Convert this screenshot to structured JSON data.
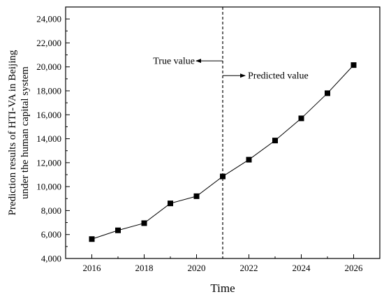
{
  "chart_data": {
    "type": "line",
    "title": "",
    "xlabel": "Time",
    "ylabel_line1": "Prediction results of HTI-VA in Beijing",
    "ylabel_line2": "under the human capital system",
    "x": [
      2016,
      2017,
      2018,
      2019,
      2020,
      2021,
      2022,
      2023,
      2024,
      2025,
      2026
    ],
    "series": [
      {
        "values": [
          5620,
          6350,
          6950,
          8600,
          9200,
          10850,
          12250,
          13850,
          15700,
          17800,
          20150
        ]
      }
    ],
    "xlim": [
      2015,
      2027
    ],
    "ylim": [
      4000,
      25000
    ],
    "x_ticks": [
      2016,
      2018,
      2020,
      2022,
      2024,
      2026
    ],
    "x_tick_labels": [
      "2016",
      "2018",
      "2020",
      "2022",
      "2024",
      "2026"
    ],
    "y_ticks": [
      4000,
      6000,
      8000,
      10000,
      12000,
      14000,
      16000,
      18000,
      20000,
      22000,
      24000
    ],
    "y_tick_labels": [
      "4,000",
      "6,000",
      "8,000",
      "10,000",
      "12,000",
      "14,000",
      "16,000",
      "18,000",
      "20,000",
      "22,000",
      "24,000"
    ],
    "grid": false,
    "legend": "none",
    "divider_x": 2021,
    "annotations": {
      "true_value": {
        "text": "True value",
        "arrow_y": 20500
      },
      "predicted_value": {
        "text": "Predicted value",
        "arrow_y": 19270
      }
    },
    "colors": {
      "line": "#000000",
      "marker": "#000000",
      "axis": "#000000"
    }
  }
}
